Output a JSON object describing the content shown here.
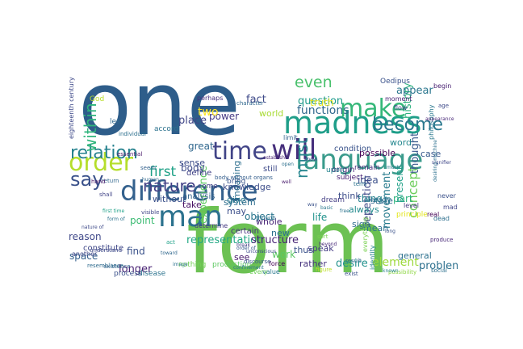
{
  "wordcloud": {
    "words": [
      {
        "text": "one",
        "color": "#2e5d8a"
      },
      {
        "text": "form",
        "color": "#6cc153"
      },
      {
        "text": "madness",
        "color": "#1f9e89"
      },
      {
        "text": "language",
        "color": "#3a9b8c"
      },
      {
        "text": "difference",
        "color": "#34618d"
      },
      {
        "text": "will",
        "color": "#462f7c"
      },
      {
        "text": "time",
        "color": "#414487"
      },
      {
        "text": "make",
        "color": "#35b779"
      },
      {
        "text": "order",
        "color": "#b5de2b"
      },
      {
        "text": "man",
        "color": "#2c728e"
      },
      {
        "text": "relation",
        "color": "#26828e"
      },
      {
        "text": "say",
        "color": "#3b528b"
      },
      {
        "text": "must",
        "color": "#25858e"
      },
      {
        "text": "within",
        "color": "#2fb47c"
      },
      {
        "text": "nature",
        "color": "#424086"
      },
      {
        "text": "become",
        "color": "#2a788e"
      },
      {
        "text": "functions",
        "color": "#31688e"
      },
      {
        "text": "first",
        "color": "#1fa187"
      },
      {
        "text": "even",
        "color": "#4ac16d"
      },
      {
        "text": "concept",
        "color": "#6ccd5a"
      },
      {
        "text": "thought",
        "color": "#38598c"
      },
      {
        "text": "representation",
        "color": "#22a884"
      },
      {
        "text": "repetition",
        "color": "#3f4788"
      },
      {
        "text": "movement",
        "color": "#287c8e"
      },
      {
        "text": "history",
        "color": "#2cb17e"
      },
      {
        "text": "structure",
        "color": "#482475"
      },
      {
        "text": "question",
        "color": "#1e9b8a"
      },
      {
        "text": "problem",
        "color": "#2d708e"
      },
      {
        "text": "element",
        "color": "#9dd93b"
      },
      {
        "text": "desire",
        "color": "#21918c"
      },
      {
        "text": "rather",
        "color": "#46337e"
      },
      {
        "text": "possible",
        "color": "#440154"
      },
      {
        "text": "appear",
        "color": "#2a768e"
      },
      {
        "text": "knowledge",
        "color": "#3d4d8a"
      },
      {
        "text": "experience",
        "color": "#5ec962"
      },
      {
        "text": "meaning",
        "color": "#2e6f8e"
      },
      {
        "text": "world",
        "color": "#a8db34"
      },
      {
        "text": "place",
        "color": "#404688"
      },
      {
        "text": "great",
        "color": "#31688e"
      },
      {
        "text": "power",
        "color": "#443983"
      },
      {
        "text": "fact",
        "color": "#3e4a89"
      },
      {
        "text": "sign",
        "color": "#2f6c8e"
      },
      {
        "text": "idea",
        "color": "#3c508b"
      },
      {
        "text": "truth",
        "color": "#e5e419"
      },
      {
        "text": "body",
        "color": "#3e4c8a"
      },
      {
        "text": "take",
        "color": "#471063"
      },
      {
        "text": "point",
        "color": "#3dbc74"
      },
      {
        "text": "space",
        "color": "#34608d"
      },
      {
        "text": "longer",
        "color": "#482173"
      },
      {
        "text": "find",
        "color": "#3b528b"
      },
      {
        "text": "reason",
        "color": "#3f4889"
      },
      {
        "text": "without",
        "color": "#3b518b"
      },
      {
        "text": "thing",
        "color": "#26828e"
      },
      {
        "text": "always",
        "color": "#238a8d"
      },
      {
        "text": "think",
        "color": "#3d4e8a"
      },
      {
        "text": "work",
        "color": "#5cc863"
      },
      {
        "text": "speak",
        "color": "#443b84"
      },
      {
        "text": "mean",
        "color": "#2c728e"
      },
      {
        "text": "life",
        "color": "#20928c"
      },
      {
        "text": "thus",
        "color": "#3b528b"
      },
      {
        "text": "object",
        "color": "#2a768e"
      },
      {
        "text": "state",
        "color": "#31688e"
      },
      {
        "text": "see",
        "color": "#481a6c"
      },
      {
        "text": "give",
        "color": "#297b8e"
      },
      {
        "text": "new",
        "color": "#2d708e"
      },
      {
        "text": "whole",
        "color": "#482576"
      },
      {
        "text": "system",
        "color": "#2e6e8e"
      },
      {
        "text": "certain",
        "color": "#46327e"
      },
      {
        "text": "may",
        "color": "#3c4f8a"
      },
      {
        "text": "define",
        "color": "#414287"
      },
      {
        "text": "sense",
        "color": "#3d4d8a"
      },
      {
        "text": "general",
        "color": "#2d718e"
      },
      {
        "text": "part",
        "color": "#2db27d"
      },
      {
        "text": "case",
        "color": "#38598c"
      },
      {
        "text": "word",
        "color": "#24878e"
      },
      {
        "text": "present",
        "color": "#1fa088"
      },
      {
        "text": "still",
        "color": "#3e4a89"
      },
      {
        "text": "origin",
        "color": "#482878"
      },
      {
        "text": "condition",
        "color": "#3a538b"
      },
      {
        "text": "analysis",
        "color": "#33638d"
      },
      {
        "text": "constitute",
        "color": "#3f4788"
      },
      {
        "text": "two",
        "color": "#fde725"
      },
      {
        "text": "Oedipus",
        "color": "#3b528b"
      },
      {
        "text": "accord",
        "color": "#2c728e"
      },
      {
        "text": "less",
        "color": "#31688e"
      },
      {
        "text": "God",
        "color": "#b8de29"
      },
      {
        "text": "remain",
        "color": "#472d7b"
      },
      {
        "text": "already",
        "color": "#2a788e"
      },
      {
        "text": "principle",
        "color": "#e2e418"
      },
      {
        "text": "come",
        "color": "#424086"
      },
      {
        "text": "bring",
        "color": "#3a548c"
      },
      {
        "text": "subject",
        "color": "#482173"
      },
      {
        "text": "upon",
        "color": "#25848e"
      },
      {
        "text": "dream",
        "color": "#433e85"
      },
      {
        "text": "nothing",
        "color": "#73d056"
      },
      {
        "text": "production",
        "color": "#5ec962"
      },
      {
        "text": "disease",
        "color": "#2c738e"
      },
      {
        "text": "process",
        "color": "#3b528b"
      },
      {
        "text": "force",
        "color": "#440154"
      },
      {
        "text": "value",
        "color": "#2a788e"
      },
      {
        "text": "every",
        "color": "#6ece58"
      },
      {
        "text": "another",
        "color": "#3f4788"
      },
      {
        "text": "determine",
        "color": "#453882"
      },
      {
        "text": "limit",
        "color": "#33638d"
      },
      {
        "text": "perhaps",
        "color": "#46307e"
      },
      {
        "text": "moment",
        "color": "#482475"
      },
      {
        "text": "begin",
        "color": "#482071"
      },
      {
        "text": "eighteenth century",
        "color": "#3e4989"
      },
      {
        "text": "individual",
        "color": "#2d708e"
      },
      {
        "text": "essential",
        "color": "#48186a"
      },
      {
        "text": "dead",
        "color": "#2e6f8e"
      },
      {
        "text": "character",
        "color": "#31688e"
      },
      {
        "text": "visible",
        "color": "#404688"
      },
      {
        "text": "seem",
        "color": "#34618d"
      },
      {
        "text": "term",
        "color": "#2c728e"
      },
      {
        "text": "real",
        "color": "#440154"
      },
      {
        "text": "level",
        "color": "#453781"
      },
      {
        "text": "never",
        "color": "#3b528b"
      },
      {
        "text": "social",
        "color": "#2d708e"
      },
      {
        "text": "produce",
        "color": "#482878"
      },
      {
        "text": "result",
        "color": "#32648e"
      },
      {
        "text": "identity",
        "color": "#26828e"
      },
      {
        "text": "everything",
        "color": "#7ad151"
      },
      {
        "text": "flow",
        "color": "#3f4889"
      },
      {
        "text": "philosophy",
        "color": "#2a788e"
      },
      {
        "text": "mad",
        "color": "#404688"
      },
      {
        "text": "return",
        "color": "#31688e"
      },
      {
        "text": "hand",
        "color": "#481769"
      },
      {
        "text": "shall",
        "color": "#414487"
      },
      {
        "text": "understand",
        "color": "#3e4a89"
      },
      {
        "text": "existence",
        "color": "#33638d"
      },
      {
        "text": "though",
        "color": "#2c728e"
      },
      {
        "text": "act",
        "color": "#1fa188"
      },
      {
        "text": "figure",
        "color": "#bddf26"
      },
      {
        "text": "exist",
        "color": "#3b528b"
      },
      {
        "text": "possibility",
        "color": "#8fd744"
      },
      {
        "text": "resemblance",
        "color": "#2f6b8e"
      },
      {
        "text": "body without organs",
        "color": "#355f8d"
      },
      {
        "text": "unconscious",
        "color": "#3e4a89"
      },
      {
        "text": "confinement",
        "color": "#2a788e"
      },
      {
        "text": "discourse",
        "color": "#38598c"
      },
      {
        "text": "establish",
        "color": "#482475"
      },
      {
        "text": "image",
        "color": "#2c728e"
      },
      {
        "text": "know",
        "color": "#3f4788"
      },
      {
        "text": "sort",
        "color": "#7ad151"
      },
      {
        "text": "beyond",
        "color": "#482878"
      },
      {
        "text": "open",
        "color": "#2d708e"
      },
      {
        "text": "long",
        "color": "#3b528b"
      },
      {
        "text": "known",
        "color": "#26828e"
      },
      {
        "text": "age",
        "color": "#3e4a89"
      },
      {
        "text": "basic",
        "color": "#2a788e"
      },
      {
        "text": "toward",
        "color": "#31688e"
      },
      {
        "text": "well",
        "color": "#481a6c"
      },
      {
        "text": "way",
        "color": "#3b528b"
      },
      {
        "text": "form of",
        "color": "#2c728e"
      },
      {
        "text": "break",
        "color": "#433e85"
      },
      {
        "text": "order of",
        "color": "#38598c"
      },
      {
        "text": "much",
        "color": "#2a788e"
      },
      {
        "text": "first time",
        "color": "#1fa188"
      },
      {
        "text": "human",
        "color": "#31688e"
      },
      {
        "text": "signifier",
        "color": "#3f4788"
      },
      {
        "text": "desiring-machine",
        "color": "#2d708e"
      },
      {
        "text": "appearance",
        "color": "#482878"
      },
      {
        "text": "nature of",
        "color": "#3e4a89"
      },
      {
        "text": "free",
        "color": "#2c728e"
      }
    ]
  }
}
